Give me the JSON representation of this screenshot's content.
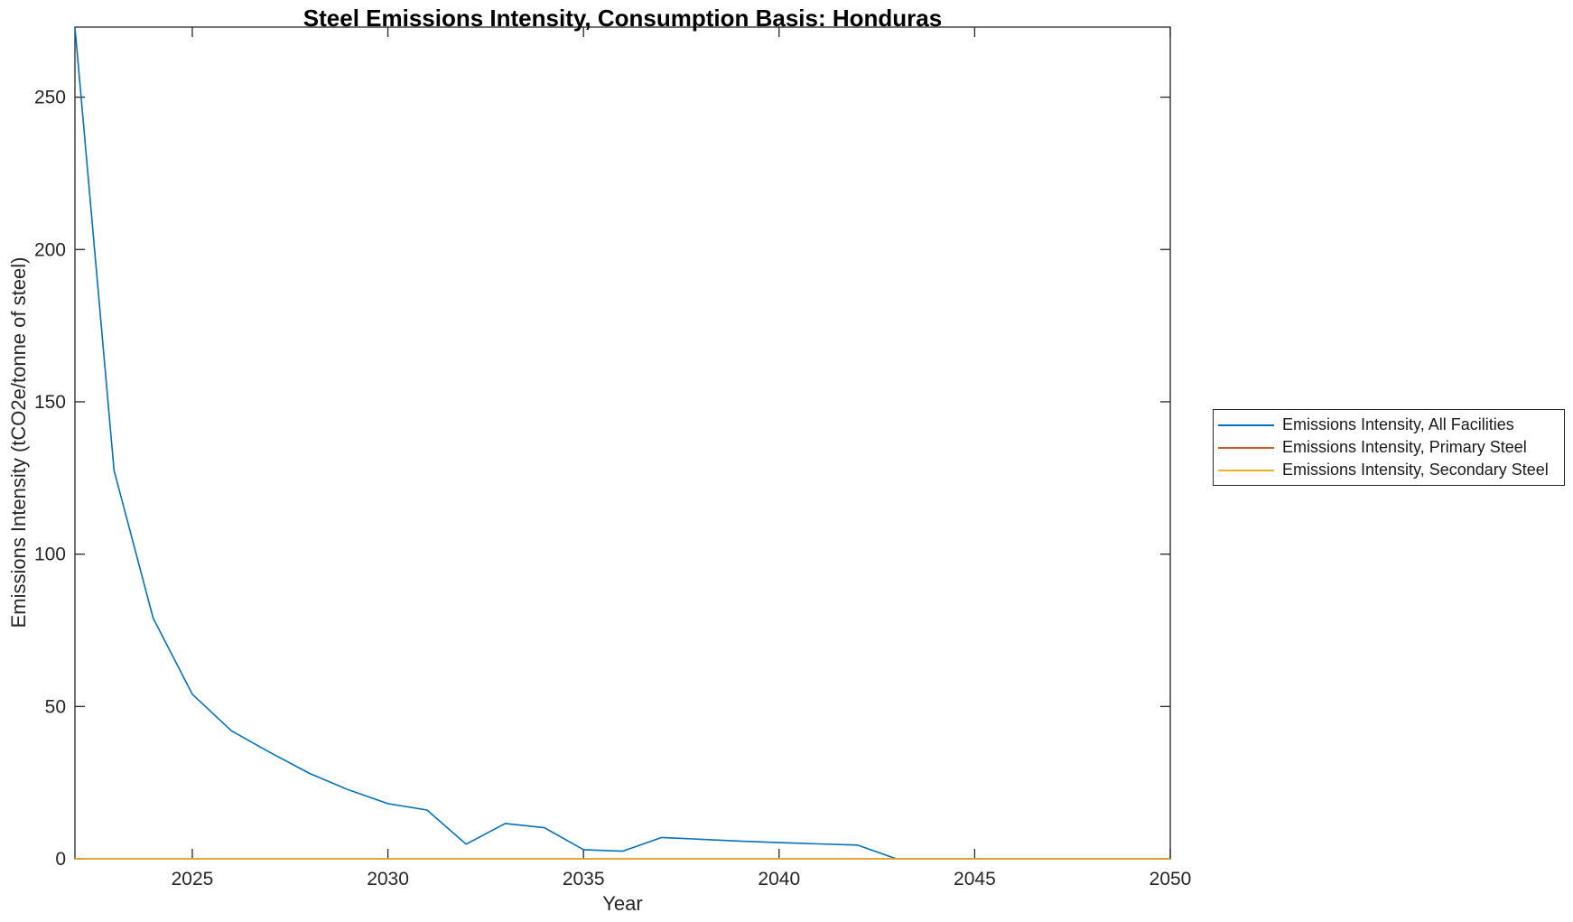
{
  "chart_data": {
    "type": "line",
    "title": "Steel Emissions Intensity, Consumption Basis: Honduras",
    "xlabel": "Year",
    "ylabel": "Emissions Intensity (tCO2e/tonne of steel)",
    "xlim": [
      2022,
      2050
    ],
    "ylim": [
      0,
      273
    ],
    "xticks": [
      2025,
      2030,
      2035,
      2040,
      2045,
      2050
    ],
    "yticks": [
      0,
      50,
      100,
      150,
      200,
      250
    ],
    "grid": false,
    "legend_position": "right-outside",
    "axis_color": "#262626",
    "x": [
      2022,
      2023,
      2024,
      2025,
      2026,
      2027,
      2028,
      2029,
      2030,
      2031,
      2032,
      2033,
      2034,
      2035,
      2036,
      2037,
      2038,
      2039,
      2040,
      2041,
      2042,
      2043,
      2044,
      2045,
      2046,
      2047,
      2048,
      2049,
      2050
    ],
    "series": [
      {
        "name": "Emissions Intensity, All Facilities",
        "color": "#0072BD",
        "values": [
          273,
          127.5,
          79,
          54,
          42,
          34.8,
          28,
          22.6,
          18.1,
          16,
          4.8,
          11.6,
          10.2,
          3.0,
          2.5,
          7.0,
          6.4,
          5.8,
          5.3,
          4.9,
          4.5,
          0,
          0,
          0,
          0,
          0,
          0,
          0,
          0
        ]
      },
      {
        "name": "Emissions Intensity, Primary Steel",
        "color": "#D95319",
        "values": [
          0,
          0,
          0,
          0,
          0,
          0,
          0,
          0,
          0,
          0,
          0,
          0,
          0,
          0,
          0,
          0,
          0,
          0,
          0,
          0,
          0,
          0,
          0,
          0,
          0,
          0,
          0,
          0,
          0
        ]
      },
      {
        "name": "Emissions Intensity, Secondary Steel",
        "color": "#EDB120",
        "values": [
          0,
          0,
          0,
          0,
          0,
          0,
          0,
          0,
          0,
          0,
          0,
          0,
          0,
          0,
          0,
          0,
          0,
          0,
          0,
          0,
          0,
          0,
          0,
          0,
          0,
          0,
          0,
          0,
          0
        ]
      }
    ]
  }
}
